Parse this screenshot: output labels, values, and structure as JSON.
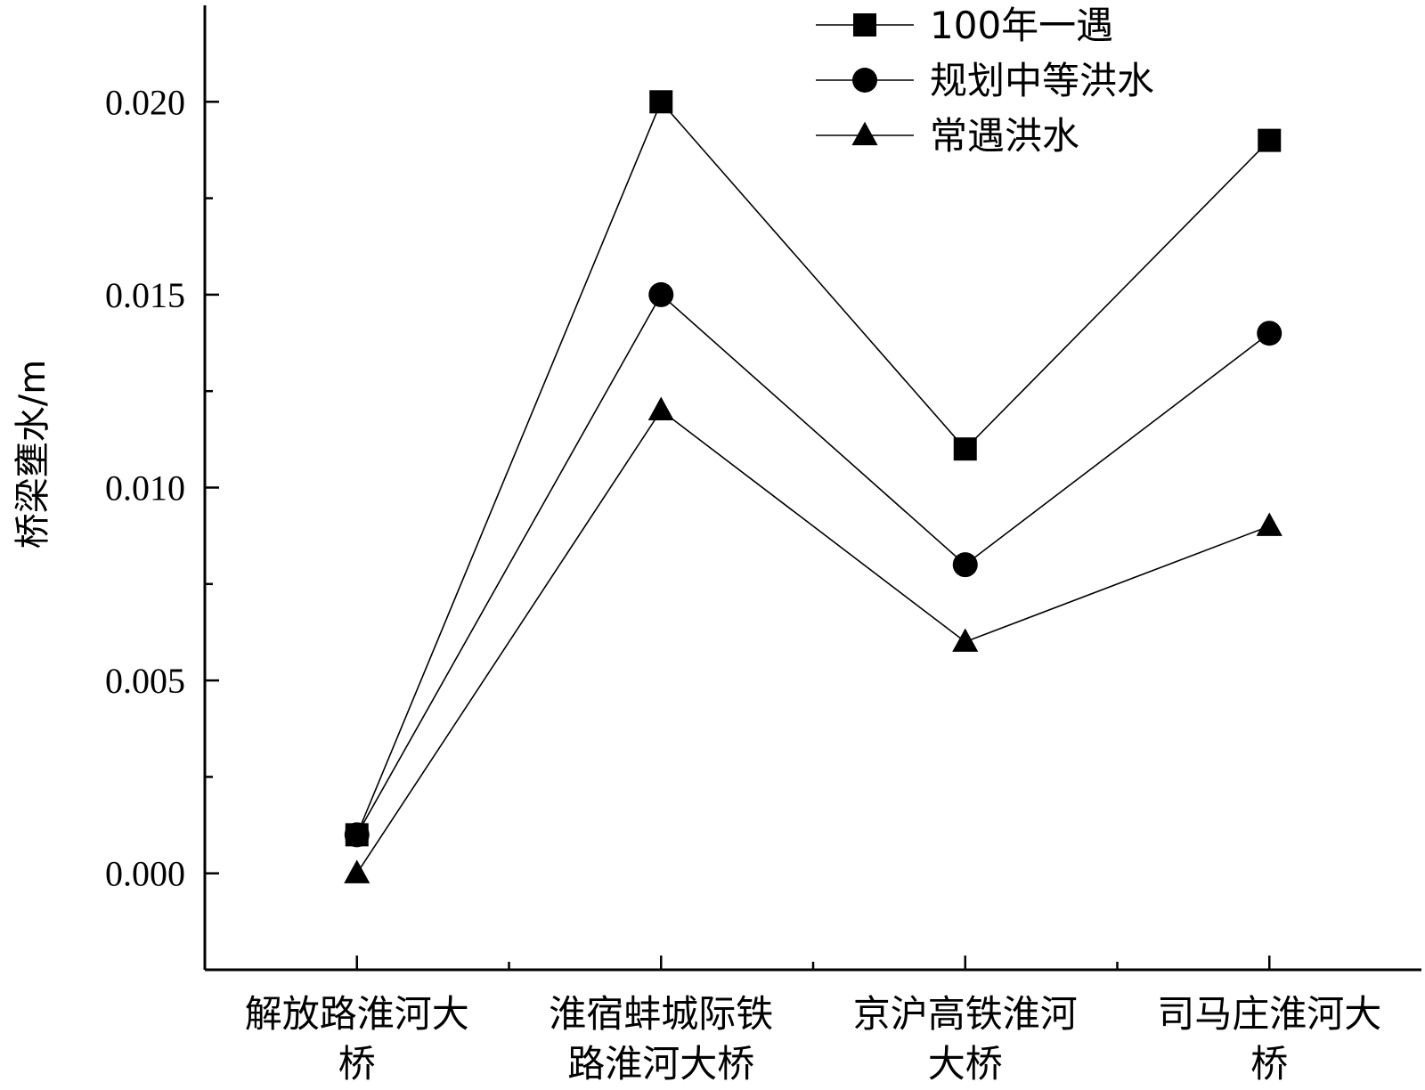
{
  "chart_data": {
    "type": "line",
    "title": "",
    "xlabel": "",
    "ylabel": "桥梁壅水/m",
    "categories": [
      [
        "解放路淮河大",
        "桥"
      ],
      [
        "淮宿蚌城际铁",
        "路淮河大桥"
      ],
      [
        "京沪高铁淮河",
        "大桥"
      ],
      [
        "司马庄淮河大",
        "桥"
      ]
    ],
    "ylim": [
      -0.0025,
      0.0225
    ],
    "yticks": [
      "0.000",
      "0.005",
      "0.010",
      "0.015",
      "0.020"
    ],
    "ytick_values": [
      0,
      0.005,
      0.01,
      0.015,
      0.02
    ],
    "grid": false,
    "legend_position": "top-right",
    "series": [
      {
        "name": "100年一遇",
        "marker": "square",
        "values": [
          0.001,
          0.02,
          0.011,
          0.019
        ]
      },
      {
        "name": "规划中等洪水",
        "marker": "circle",
        "values": [
          0.001,
          0.015,
          0.008,
          0.014
        ]
      },
      {
        "name": "常遇洪水",
        "marker": "triangle",
        "values": [
          0.0,
          0.012,
          0.006,
          0.009
        ]
      }
    ],
    "colors": {
      "line": "#000000",
      "marker": "#000000",
      "axis": "#000000"
    }
  }
}
